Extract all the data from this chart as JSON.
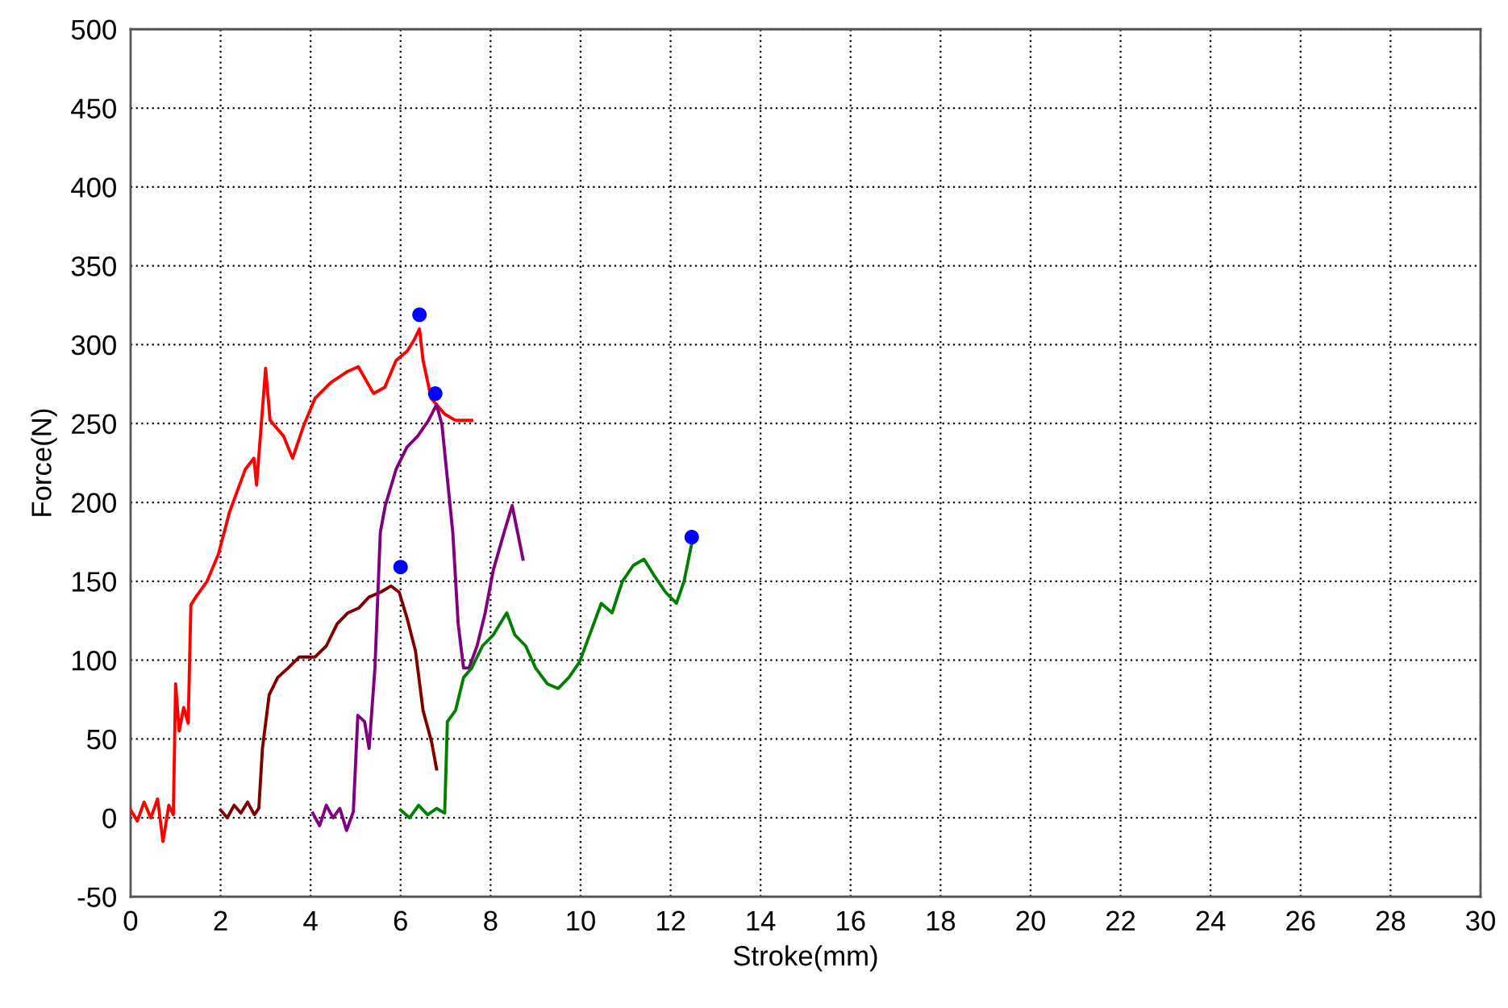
{
  "chart_data": {
    "type": "line",
    "xlabel": "Stroke(mm)",
    "ylabel": "Force(N)",
    "xlim": [
      0,
      30
    ],
    "xticks": [
      0,
      2,
      4,
      6,
      8,
      10,
      12,
      14,
      16,
      18,
      20,
      22,
      24,
      26,
      28,
      30
    ],
    "ylim": [
      -50,
      500
    ],
    "yticks": [
      -50,
      0,
      50,
      100,
      150,
      200,
      250,
      300,
      350,
      400,
      450,
      500
    ],
    "grid": true,
    "marker": "none",
    "line_style": "solid",
    "series": [
      {
        "color": "#ff0000",
        "x": [
          0,
          0.15,
          0.3,
          0.45,
          0.6,
          0.72,
          0.85,
          0.95,
          1.0,
          1.08,
          1.18,
          1.28,
          1.34,
          1.45,
          1.7,
          1.95,
          2.2,
          2.55,
          2.74,
          2.8,
          2.96,
          3.0,
          3.1,
          3.4,
          3.6,
          3.85,
          4.1,
          4.45,
          4.82,
          5.06,
          5.4,
          5.65,
          5.9,
          6.15,
          6.3,
          6.42,
          6.5,
          6.68,
          6.98,
          7.22,
          7.58
        ],
        "values": [
          5,
          -2,
          10,
          0,
          12,
          -15,
          8,
          2,
          85,
          55,
          70,
          60,
          135,
          140,
          150,
          167,
          194,
          221,
          228,
          211,
          270,
          285,
          252,
          242,
          228,
          249,
          266,
          276,
          283,
          286,
          269,
          273,
          290,
          296,
          303,
          310,
          290,
          266,
          256,
          252,
          252
        ]
      },
      {
        "color": "#800000",
        "x": [
          2.0,
          2.15,
          2.3,
          2.45,
          2.6,
          2.75,
          2.85,
          2.93,
          3.08,
          3.27,
          3.5,
          3.75,
          4.1,
          4.35,
          4.59,
          4.83,
          5.07,
          5.3,
          5.55,
          5.79,
          5.97,
          6.15,
          6.33,
          6.5,
          6.69,
          6.8
        ],
        "values": [
          5,
          0,
          8,
          3,
          10,
          2,
          6,
          44,
          78,
          89,
          95,
          102,
          102,
          109,
          123,
          130,
          133,
          140,
          143,
          147,
          143,
          126,
          106,
          68,
          48,
          31
        ]
      },
      {
        "color": "#800080",
        "x": [
          4.05,
          4.2,
          4.35,
          4.5,
          4.65,
          4.8,
          4.95,
          5.05,
          5.2,
          5.3,
          5.43,
          5.55,
          5.66,
          5.9,
          6.14,
          6.38,
          6.62,
          6.8,
          6.92,
          7.04,
          7.16,
          7.28,
          7.4,
          7.52,
          7.7,
          7.88,
          8.06,
          8.3,
          8.48,
          8.6,
          8.72
        ],
        "values": [
          3,
          -5,
          8,
          0,
          6,
          -8,
          4,
          65,
          61,
          44,
          95,
          181,
          198,
          221,
          235,
          242,
          252,
          262,
          249,
          215,
          181,
          123,
          95,
          95,
          109,
          130,
          157,
          181,
          198,
          181,
          164
        ]
      },
      {
        "color": "#008000",
        "x": [
          6.0,
          6.2,
          6.4,
          6.6,
          6.8,
          6.98,
          7.04,
          7.22,
          7.4,
          7.58,
          7.82,
          8.06,
          8.36,
          8.54,
          8.78,
          9.0,
          9.26,
          9.5,
          9.74,
          9.98,
          10.2,
          10.46,
          10.7,
          10.93,
          11.17,
          11.41,
          11.65,
          11.89,
          12.13,
          12.3,
          12.47
        ],
        "values": [
          5,
          0,
          8,
          2,
          6,
          3,
          61,
          68,
          89,
          95,
          109,
          116,
          130,
          116,
          109,
          95,
          85,
          82,
          89,
          99,
          116,
          136,
          130,
          150,
          160,
          164,
          153,
          143,
          136,
          150,
          174
        ]
      },
      {
        "type": "scatter",
        "marker": "circle",
        "color": "#0000ff",
        "x": [
          6.42,
          6.0,
          6.77,
          12.47
        ],
        "values": [
          319,
          159,
          269,
          178
        ]
      }
    ]
  }
}
